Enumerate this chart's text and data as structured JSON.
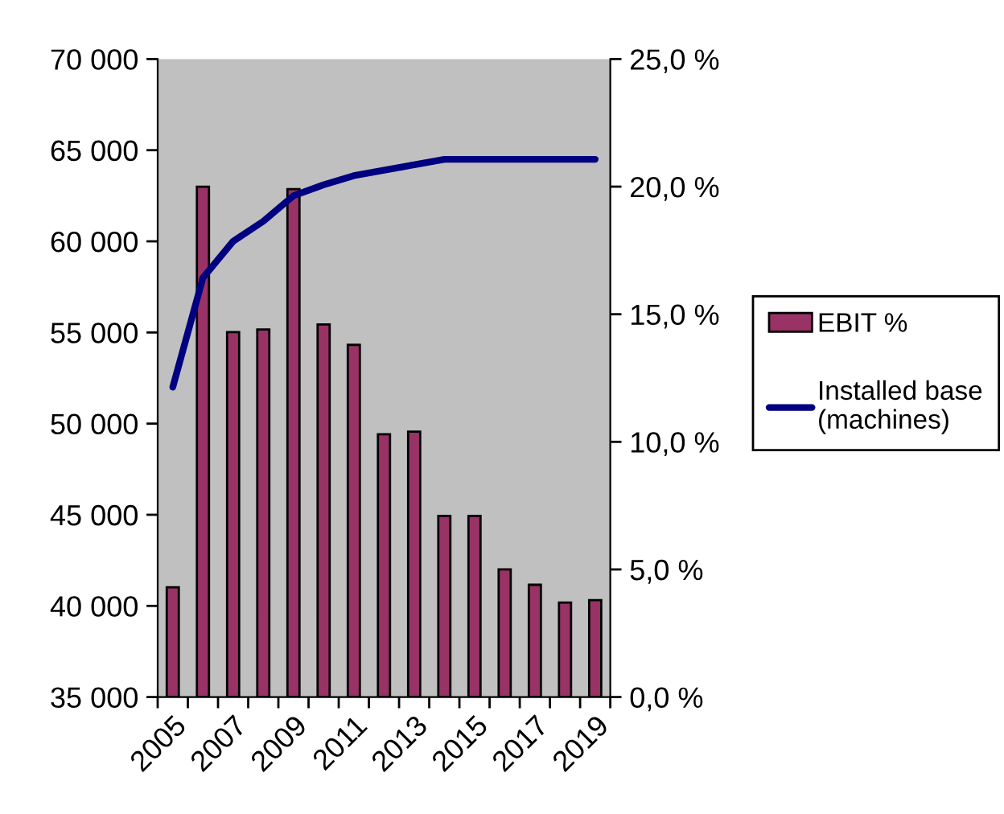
{
  "chart_data": {
    "type": "bar",
    "categories": [
      "2005",
      null,
      "2007",
      null,
      "2009",
      null,
      "2011",
      null,
      "2013",
      null,
      "2015",
      null,
      "2017",
      null,
      "2019"
    ],
    "series": [
      {
        "name": "EBIT %",
        "axis": "y2",
        "color": "#993366",
        "values": [
          4.3,
          20.0,
          14.3,
          14.4,
          19.9,
          14.6,
          13.8,
          10.3,
          10.4,
          7.1,
          7.1,
          5.0,
          4.4,
          3.7,
          3.8
        ]
      },
      {
        "name": "Installed base\n(machines)",
        "type": "line",
        "axis": "y",
        "color": "#000080",
        "values": [
          52000,
          58000,
          60000,
          61100,
          62500,
          63100,
          63600,
          63900,
          64200,
          64500,
          64500,
          64500,
          64500,
          64500,
          64500
        ]
      }
    ],
    "ylim": [
      35000,
      70000
    ],
    "yticks": [
      {
        "value": 35000,
        "label": "35 000"
      },
      {
        "value": 40000,
        "label": "40 000"
      },
      {
        "value": 45000,
        "label": "45 000"
      },
      {
        "value": 50000,
        "label": "50 000"
      },
      {
        "value": 55000,
        "label": "55 000"
      },
      {
        "value": 60000,
        "label": "60 000"
      },
      {
        "value": 65000,
        "label": "65 000"
      },
      {
        "value": 70000,
        "label": "70 000"
      }
    ],
    "y2lim": [
      0,
      25
    ],
    "y2ticks": [
      {
        "value": 0,
        "label": "0,0 %"
      },
      {
        "value": 5,
        "label": "5,0 %"
      },
      {
        "value": 10,
        "label": "10,0 %"
      },
      {
        "value": 15,
        "label": "15,0 %"
      },
      {
        "value": 20,
        "label": "20,0 %"
      },
      {
        "value": 25,
        "label": "25,0 %"
      }
    ],
    "legend": "right"
  }
}
